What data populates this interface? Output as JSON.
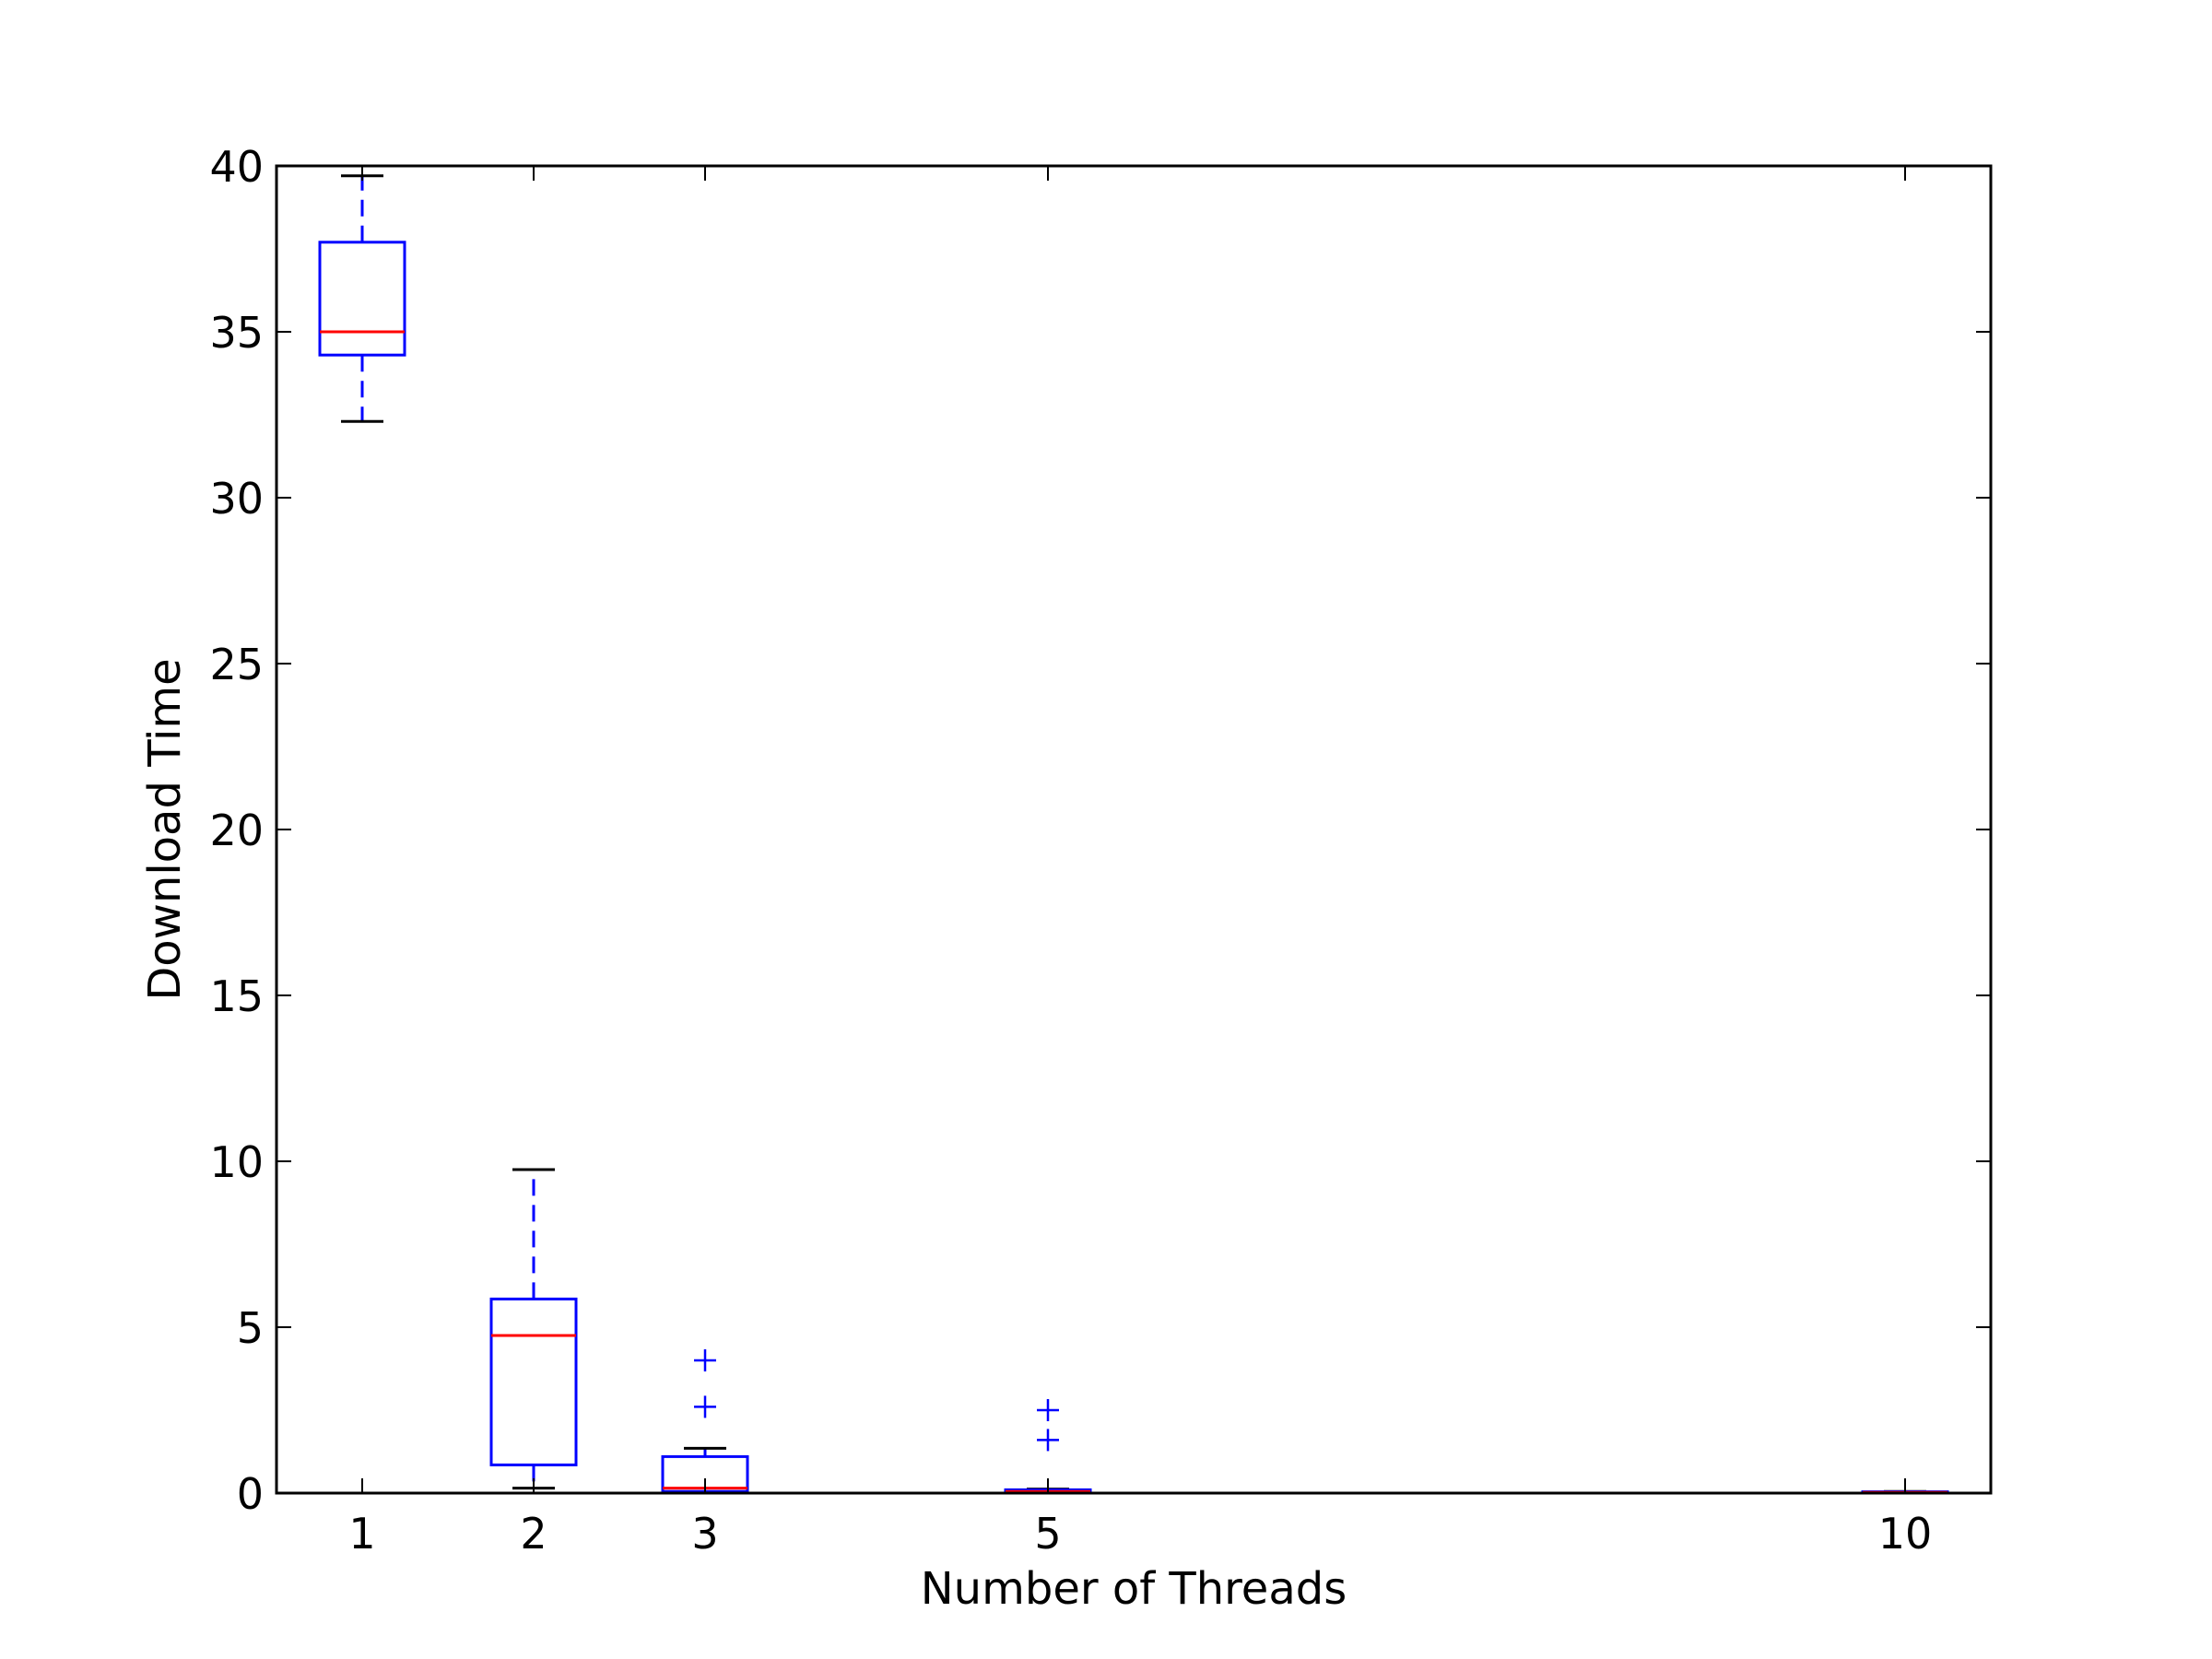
{
  "chart_data": {
    "type": "box",
    "title": "",
    "xlabel": "Number of Threads",
    "ylabel": "Download Time",
    "ylim": [
      0,
      40
    ],
    "xlim": [
      0.5,
      10.5
    ],
    "yticks": [
      0,
      5,
      10,
      15,
      20,
      25,
      30,
      35,
      40
    ],
    "xticks": [
      1,
      2,
      3,
      5,
      10
    ],
    "grid": false,
    "colors": {
      "box": "#0000ff",
      "median": "#ff0000",
      "cap": "#000000",
      "flier": "#0000ff",
      "axis": "#000000"
    },
    "boxes": [
      {
        "x": 1,
        "label": "1",
        "whisker_low": 32.3,
        "q1": 34.3,
        "median": 35.0,
        "q3": 37.7,
        "whisker_high": 39.7,
        "fliers": []
      },
      {
        "x": 2,
        "label": "2",
        "whisker_low": 0.15,
        "q1": 0.85,
        "median": 4.75,
        "q3": 5.85,
        "whisker_high": 9.75,
        "fliers": []
      },
      {
        "x": 3,
        "label": "3",
        "whisker_low": 0.0,
        "q1": 0.05,
        "median": 0.15,
        "q3": 1.1,
        "whisker_high": 1.35,
        "fliers": [
          2.6,
          4.0
        ]
      },
      {
        "x": 5,
        "label": "5",
        "whisker_low": 0.0,
        "q1": 0.02,
        "median": 0.05,
        "q3": 0.1,
        "whisker_high": 0.12,
        "fliers": [
          1.6,
          2.5
        ]
      },
      {
        "x": 10,
        "label": "10",
        "whisker_low": 0.0,
        "q1": 0.01,
        "median": 0.02,
        "q3": 0.04,
        "whisker_high": 0.05,
        "fliers": []
      }
    ]
  }
}
